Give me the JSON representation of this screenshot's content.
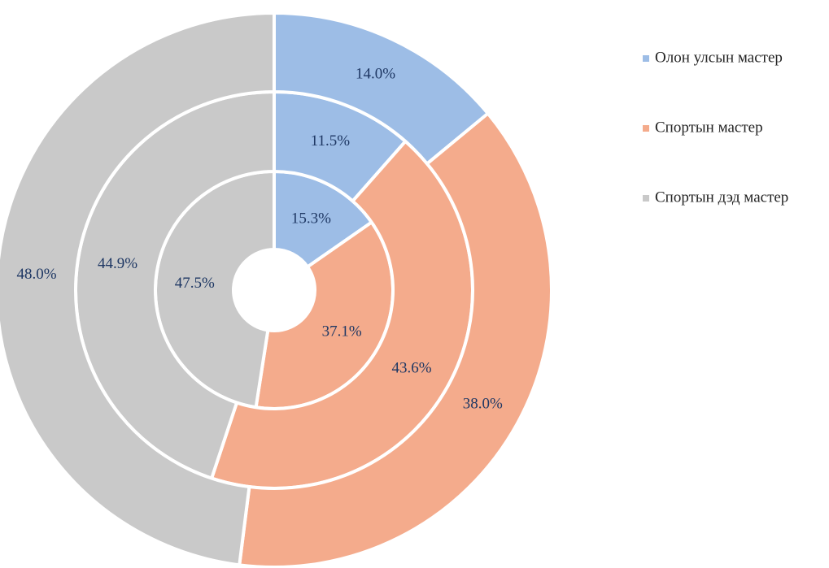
{
  "chart_data": {
    "type": "pie",
    "categories": [
      "Олон улсын мастер",
      "Спортын мастер",
      "Спортын дэд мастер"
    ],
    "colors": [
      "#9dbde6",
      "#f4ab8c",
      "#c9c9c9"
    ],
    "rings": [
      {
        "values": [
          15.3,
          37.1,
          47.5
        ],
        "value_labels": [
          "15.3%",
          "37.1%",
          "47.5%"
        ]
      },
      {
        "values": [
          11.5,
          43.6,
          44.9
        ],
        "value_labels": [
          "11.5%",
          "43.6%",
          "44.9%"
        ]
      },
      {
        "values": [
          14.0,
          38.0,
          48.0
        ],
        "value_labels": [
          "14.0%",
          "38.0%",
          "48.0%"
        ]
      }
    ],
    "legend": "right"
  }
}
